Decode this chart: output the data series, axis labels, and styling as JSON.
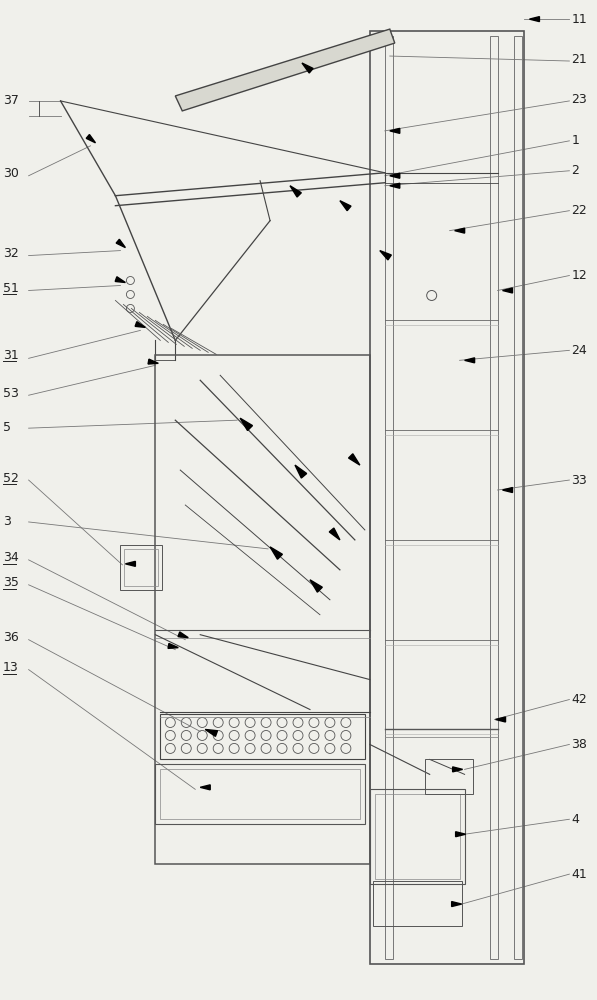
{
  "bg_color": "#f0f0eb",
  "line_color": "#444444",
  "fig_w": 5.97,
  "fig_h": 10.0,
  "bg_color2": "#e8e8e3"
}
